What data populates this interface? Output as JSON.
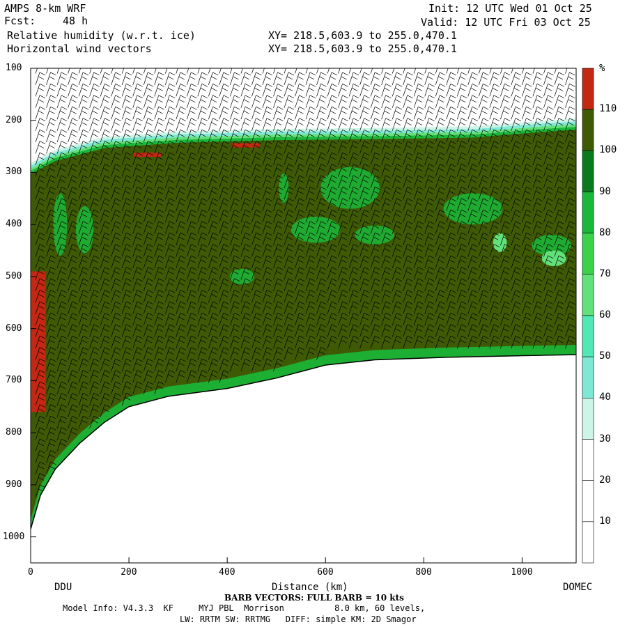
{
  "header": {
    "model": "AMPS 8-km WRF",
    "fcst_label": "Fcst:",
    "fcst_value": "48 h",
    "field1": "Relative humidity (w.r.t. ice)",
    "field2": "Horizontal wind vectors",
    "init": "Init: 12 UTC Wed 01 Oct 25",
    "valid": "Valid: 12 UTC Fri 03 Oct 25",
    "xy1": "XY= 218.5,603.9 to 255.0,470.1",
    "xy2": "XY= 218.5,603.9 to 255.0,470.1"
  },
  "chart_data": {
    "type": "heatmap",
    "title": "Relative humidity (w.r.t. ice)",
    "xlabel": "Distance (km)",
    "ylabel": "",
    "xlim": [
      0,
      1110
    ],
    "ylim": [
      1050,
      100
    ],
    "x_ticks": [
      "0",
      "200",
      "400",
      "600",
      "800",
      "1000"
    ],
    "y_ticks": [
      "100",
      "200",
      "300",
      "400",
      "500",
      "600",
      "700",
      "800",
      "900",
      "1000"
    ],
    "start_label": "DDU",
    "end_label": "DOMEC",
    "colorbar": {
      "unit": "%",
      "levels": [
        10,
        20,
        30,
        40,
        50,
        60,
        70,
        80,
        90,
        100,
        110
      ],
      "colors": [
        "#ffffff",
        "#ffffff",
        "#ffffff",
        "#ccf5e8",
        "#7ee8d5",
        "#50e8b4",
        "#62e07a",
        "#3bd24a",
        "#1ab83a",
        "#0a7a1e",
        "#3f5a05",
        "#c32812"
      ]
    },
    "terrain_surface": [
      {
        "x": 0,
        "p": 985
      },
      {
        "x": 20,
        "p": 920
      },
      {
        "x": 50,
        "p": 870
      },
      {
        "x": 100,
        "p": 820
      },
      {
        "x": 150,
        "p": 780
      },
      {
        "x": 200,
        "p": 750
      },
      {
        "x": 280,
        "p": 730
      },
      {
        "x": 400,
        "p": 715
      },
      {
        "x": 500,
        "p": 695
      },
      {
        "x": 600,
        "p": 670
      },
      {
        "x": 700,
        "p": 660
      },
      {
        "x": 850,
        "p": 655
      },
      {
        "x": 1000,
        "p": 652
      },
      {
        "x": 1110,
        "p": 650
      }
    ],
    "moist_top": [
      {
        "x": 0,
        "p": 295
      },
      {
        "x": 50,
        "p": 270
      },
      {
        "x": 150,
        "p": 245
      },
      {
        "x": 300,
        "p": 235
      },
      {
        "x": 500,
        "p": 230
      },
      {
        "x": 700,
        "p": 228
      },
      {
        "x": 900,
        "p": 225
      },
      {
        "x": 1030,
        "p": 215
      },
      {
        "x": 1110,
        "p": 210
      }
    ],
    "ice_supersaturated": [
      {
        "x0": 0,
        "x1": 30,
        "p0": 490,
        "p1": 760
      },
      {
        "x0": 210,
        "x1": 265,
        "p0": 262,
        "p1": 270
      },
      {
        "x0": 410,
        "x1": 465,
        "p0": 244,
        "p1": 252
      }
    ],
    "barb_note": "BARB VECTORS: FULL BARB = 10 kts"
  },
  "footer": {
    "barb": "BARB VECTORS: FULL BARB = 10 kts",
    "model_info": "Model Info: V4.3.3  KF     MYJ PBL  Morrison          8.0 km, 60 levels,",
    "physics": "LW: RRTM SW: RRTMG   DIFF: simple KM: 2D Smagor"
  }
}
